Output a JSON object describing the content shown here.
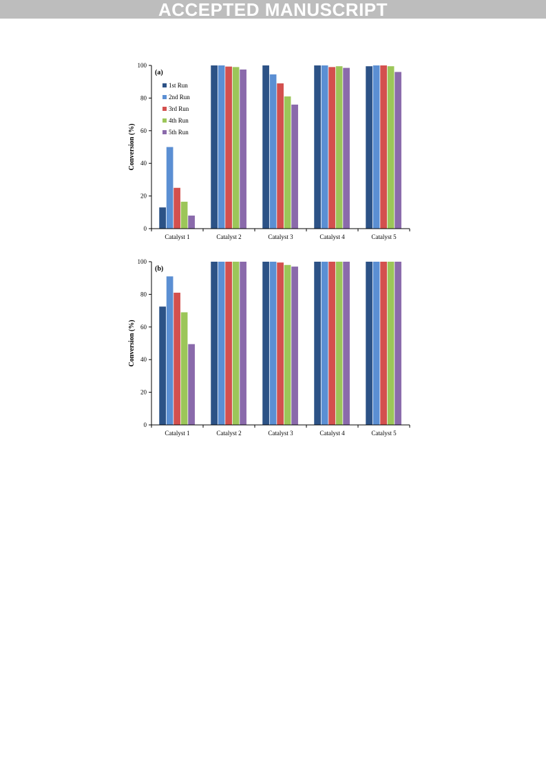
{
  "banner": {
    "text": "ACCEPTED MANUSCRIPT"
  },
  "colors": {
    "banner_bg": "#bdbdbd",
    "series": [
      "#2c5286",
      "#5b8fd3",
      "#d3504e",
      "#9cc659",
      "#8a6aab"
    ]
  },
  "chart_data": [
    {
      "type": "bar",
      "panel_label": "(a)",
      "ylabel": "Conversion (%)",
      "ylim": [
        0,
        100
      ],
      "yticks": [
        0,
        20,
        40,
        60,
        80,
        100
      ],
      "categories": [
        "Catalyst 1",
        "Catalyst 2",
        "Catalyst 3",
        "Catalyst 4",
        "Catalyst 5"
      ],
      "legend": {
        "position": "top-left",
        "show": true
      },
      "grid": false,
      "series": [
        {
          "name": "1st Run",
          "values": [
            13,
            100,
            100,
            100,
            99.5
          ]
        },
        {
          "name": "2nd Run",
          "values": [
            50,
            100,
            94.5,
            100,
            100
          ]
        },
        {
          "name": "3rd Run",
          "values": [
            25,
            99.3,
            89,
            99,
            100
          ]
        },
        {
          "name": "4th Run",
          "values": [
            16.5,
            99,
            81,
            99.5,
            99.5
          ]
        },
        {
          "name": "5th Run",
          "values": [
            8,
            97.5,
            76,
            98.5,
            96
          ]
        }
      ]
    },
    {
      "type": "bar",
      "panel_label": "(b)",
      "ylabel": "Conversion (%)",
      "ylim": [
        0,
        100
      ],
      "yticks": [
        0,
        20,
        40,
        60,
        80,
        100
      ],
      "categories": [
        "Catalyst 1",
        "Catalyst 2",
        "Catalyst 3",
        "Catalyst 4",
        "Catalyst 5"
      ],
      "legend": {
        "show": false
      },
      "grid": false,
      "series": [
        {
          "name": "1st Run",
          "values": [
            72.5,
            100,
            100,
            100,
            100
          ]
        },
        {
          "name": "2nd Run",
          "values": [
            91,
            100,
            100,
            100,
            100
          ]
        },
        {
          "name": "3rd Run",
          "values": [
            81,
            100,
            99.5,
            100,
            100
          ]
        },
        {
          "name": "4th Run",
          "values": [
            69,
            100,
            98,
            100,
            100
          ]
        },
        {
          "name": "5th Run",
          "values": [
            49.5,
            100,
            97,
            100,
            100
          ]
        }
      ]
    }
  ]
}
